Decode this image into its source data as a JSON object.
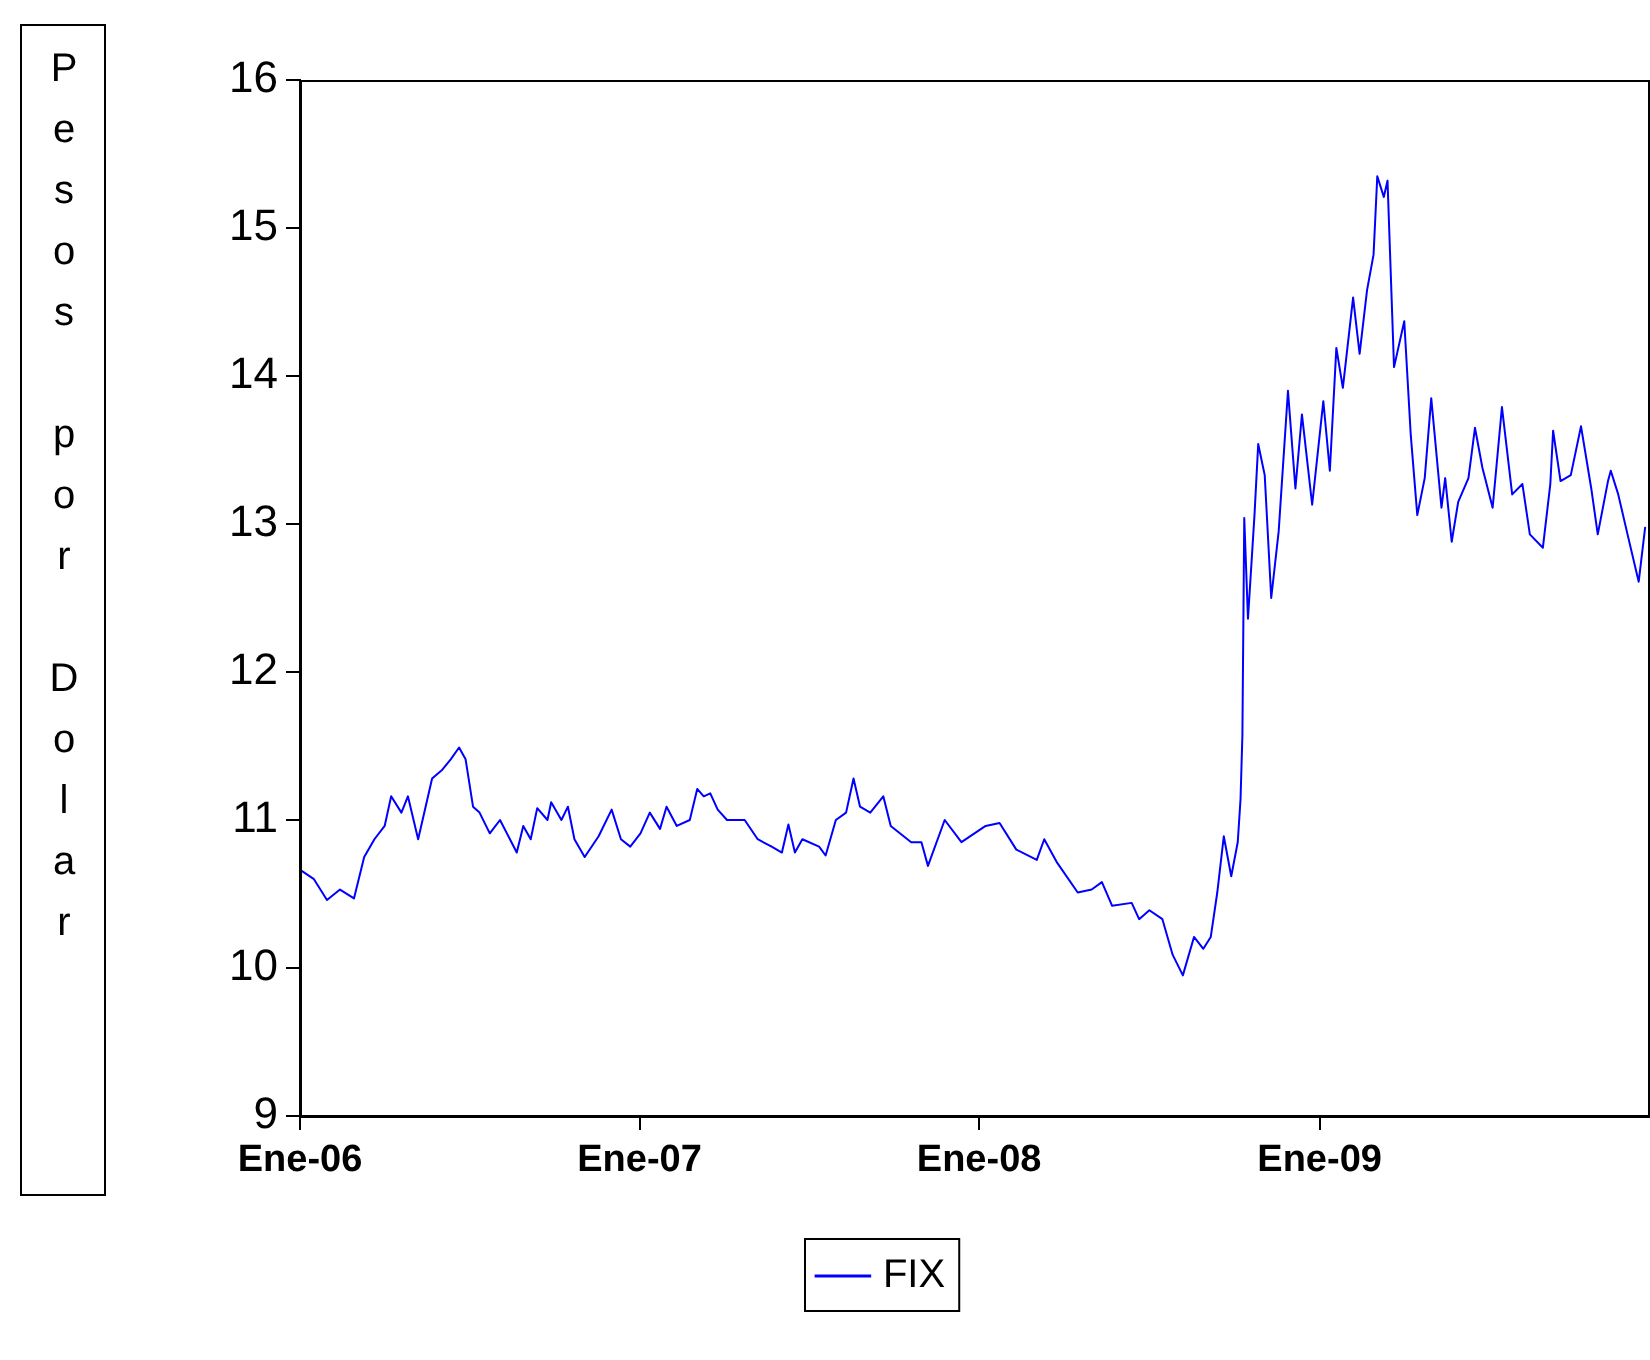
{
  "chart_data": {
    "type": "line",
    "ylabel": "Pesos por Dolar",
    "legend": "bottom",
    "grid": false,
    "marker": "none",
    "line_style": "solid",
    "xlim": [
      "2006-01-01",
      "2009-12-20"
    ],
    "ylim": [
      9,
      16
    ],
    "yticks": [
      9,
      10,
      11,
      12,
      13,
      14,
      15,
      16
    ],
    "xticks": [
      {
        "value": "2006-01-01",
        "label": "Ene-06"
      },
      {
        "value": "2007-01-01",
        "label": "Ene-07"
      },
      {
        "value": "2008-01-01",
        "label": "Ene-08"
      },
      {
        "value": "2009-01-01",
        "label": "Ene-09"
      }
    ],
    "series": [
      {
        "name": "FIX",
        "color": "#0000ff",
        "x": [
          "2006-01-02",
          "2006-01-16",
          "2006-01-30",
          "2006-02-13",
          "2006-02-28",
          "2006-03-11",
          "2006-03-22",
          "2006-04-02",
          "2006-04-09",
          "2006-04-20",
          "2006-04-27",
          "2006-05-08",
          "2006-05-23",
          "2006-06-03",
          "2006-06-12",
          "2006-06-21",
          "2006-06-28",
          "2006-07-06",
          "2006-07-13",
          "2006-07-24",
          "2006-08-04",
          "2006-08-22",
          "2006-08-29",
          "2006-09-06",
          "2006-09-13",
          "2006-09-24",
          "2006-09-28",
          "2006-10-09",
          "2006-10-16",
          "2006-10-23",
          "2006-11-03",
          "2006-11-18",
          "2006-12-02",
          "2006-12-12",
          "2006-12-22",
          "2007-01-02",
          "2007-01-12",
          "2007-01-23",
          "2007-01-30",
          "2007-02-10",
          "2007-02-24",
          "2007-03-04",
          "2007-03-11",
          "2007-03-18",
          "2007-03-26",
          "2007-04-05",
          "2007-04-24",
          "2007-05-08",
          "2007-05-23",
          "2007-06-03",
          "2007-06-10",
          "2007-06-17",
          "2007-06-25",
          "2007-07-13",
          "2007-07-20",
          "2007-07-31",
          "2007-08-11",
          "2007-08-19",
          "2007-08-26",
          "2007-09-06",
          "2007-09-20",
          "2007-09-28",
          "2007-10-20",
          "2007-10-31",
          "2007-11-07",
          "2007-11-25",
          "2007-12-13",
          "2008-01-08",
          "2008-01-23",
          "2008-02-10",
          "2008-03-03",
          "2008-03-11",
          "2008-03-25",
          "2008-04-16",
          "2008-05-01",
          "2008-05-12",
          "2008-05-23",
          "2008-06-13",
          "2008-06-21",
          "2008-07-02",
          "2008-07-16",
          "2008-07-27",
          "2008-08-07",
          "2008-08-19",
          "2008-08-29",
          "2008-09-06",
          "2008-09-13",
          "2008-09-20",
          "2008-09-28",
          "2008-10-05",
          "2008-10-08",
          "2008-10-10",
          "2008-10-12",
          "2008-10-16",
          "2008-10-23",
          "2008-10-27",
          "2008-11-03",
          "2008-11-10",
          "2008-11-18",
          "2008-11-28",
          "2008-12-06",
          "2008-12-13",
          "2008-12-24",
          "2009-01-05",
          "2009-01-12",
          "2009-01-19",
          "2009-01-26",
          "2009-02-06",
          "2009-02-13",
          "2009-02-21",
          "2009-02-28",
          "2009-03-04",
          "2009-03-11",
          "2009-03-15",
          "2009-03-22",
          "2009-04-02",
          "2009-04-09",
          "2009-04-16",
          "2009-04-24",
          "2009-05-01",
          "2009-05-12",
          "2009-05-16",
          "2009-05-23",
          "2009-05-30",
          "2009-06-10",
          "2009-06-17",
          "2009-06-25",
          "2009-07-06",
          "2009-07-16",
          "2009-07-27",
          "2009-08-07",
          "2009-08-15",
          "2009-08-29",
          "2009-09-06",
          "2009-09-09",
          "2009-09-17",
          "2009-09-28",
          "2009-10-09",
          "2009-10-20",
          "2009-10-27",
          "2009-11-07",
          "2009-11-10",
          "2009-11-18",
          "2009-11-28",
          "2009-12-10",
          "2009-12-17"
        ],
        "values": [
          10.66,
          10.6,
          10.46,
          10.53,
          10.47,
          10.75,
          10.87,
          10.96,
          11.16,
          11.05,
          11.16,
          10.87,
          11.28,
          11.34,
          11.41,
          11.49,
          11.41,
          11.09,
          11.05,
          10.91,
          11.0,
          10.78,
          10.96,
          10.87,
          11.08,
          11.0,
          11.12,
          11.0,
          11.09,
          10.87,
          10.75,
          10.89,
          11.07,
          10.87,
          10.82,
          10.91,
          11.05,
          10.94,
          11.09,
          10.96,
          11.0,
          11.21,
          11.16,
          11.18,
          11.07,
          11.0,
          11.0,
          10.87,
          10.82,
          10.78,
          10.97,
          10.78,
          10.87,
          10.82,
          10.76,
          11.0,
          11.05,
          11.28,
          11.09,
          11.05,
          11.16,
          10.96,
          10.85,
          10.85,
          10.69,
          11.0,
          10.85,
          10.96,
          10.98,
          10.8,
          10.73,
          10.87,
          10.71,
          10.51,
          10.53,
          10.58,
          10.42,
          10.44,
          10.33,
          10.39,
          10.33,
          10.09,
          9.95,
          10.21,
          10.13,
          10.21,
          10.51,
          10.89,
          10.62,
          10.85,
          11.14,
          11.57,
          13.04,
          12.36,
          13.06,
          13.54,
          13.33,
          12.5,
          12.95,
          13.9,
          13.24,
          13.74,
          13.13,
          13.83,
          13.36,
          14.19,
          13.92,
          14.53,
          14.15,
          14.58,
          14.82,
          15.35,
          15.21,
          15.32,
          14.06,
          14.37,
          13.6,
          13.06,
          13.31,
          13.85,
          13.11,
          13.31,
          12.88,
          13.15,
          13.31,
          13.65,
          13.38,
          13.11,
          13.79,
          13.2,
          13.27,
          12.93,
          12.84,
          13.27,
          13.63,
          13.29,
          13.33,
          13.66,
          13.24,
          12.93,
          13.29,
          13.36,
          13.2,
          12.93,
          12.61,
          12.98
        ]
      }
    ]
  }
}
